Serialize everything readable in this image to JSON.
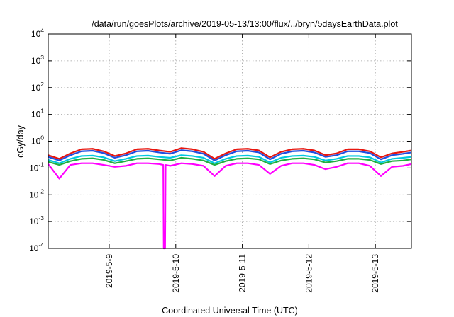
{
  "chart_data": {
    "type": "line",
    "title": "/data/run/goesPlots/archive/2019-05-13/13:00/flux/../bryn/5daysEarthData.plot",
    "xlabel": "Coordinated Universal Time (UTC)",
    "ylabel": "cGy/day",
    "yscale": "log",
    "ylim": [
      0.0001,
      10000
    ],
    "xlim": [
      "2019-05-08 02:00",
      "2019-05-13 13:00"
    ],
    "grid": true,
    "legend": "none",
    "y_ticks": [
      {
        "base": "10",
        "exp": "-4",
        "value": 0.0001
      },
      {
        "base": "10",
        "exp": "-3",
        "value": 0.001
      },
      {
        "base": "10",
        "exp": "-2",
        "value": 0.01
      },
      {
        "base": "10",
        "exp": "-1",
        "value": 0.1
      },
      {
        "base": "10",
        "exp": "0",
        "value": 1
      },
      {
        "base": "10",
        "exp": "1",
        "value": 10
      },
      {
        "base": "10",
        "exp": "2",
        "value": 100
      },
      {
        "base": "10",
        "exp": "3",
        "value": 1000
      },
      {
        "base": "10",
        "exp": "4",
        "value": 10000
      }
    ],
    "x_ticks": [
      {
        "label": "2019-5-9",
        "value": "2019-05-09 00:00"
      },
      {
        "label": "2019-5-10",
        "value": "2019-05-10 00:00"
      },
      {
        "label": "2019-5-11",
        "value": "2019-05-11 00:00"
      },
      {
        "label": "2019-5-12",
        "value": "2019-05-12 00:00"
      },
      {
        "label": "2019-5-13",
        "value": "2019-05-13 00:00"
      }
    ],
    "series": [
      {
        "color": "#e8170f",
        "x": [
          "2019-05-08 02:00",
          "2019-05-08 06:00",
          "2019-05-08 10:00",
          "2019-05-08 14:00",
          "2019-05-08 18:00",
          "2019-05-08 22:00",
          "2019-05-09 02:00",
          "2019-05-09 06:00",
          "2019-05-09 10:00",
          "2019-05-09 14:00",
          "2019-05-09 18:00",
          "2019-05-09 22:00",
          "2019-05-10 02:00",
          "2019-05-10 06:00",
          "2019-05-10 10:00",
          "2019-05-10 14:00",
          "2019-05-10 18:00",
          "2019-05-10 22:00",
          "2019-05-11 02:00",
          "2019-05-11 06:00",
          "2019-05-11 10:00",
          "2019-05-11 14:00",
          "2019-05-11 18:00",
          "2019-05-11 22:00",
          "2019-05-12 02:00",
          "2019-05-12 06:00",
          "2019-05-12 10:00",
          "2019-05-12 14:00",
          "2019-05-12 18:00",
          "2019-05-12 22:00",
          "2019-05-13 02:00",
          "2019-05-13 06:00",
          "2019-05-13 10:00",
          "2019-05-13 13:00"
        ],
        "y": [
          0.3,
          0.22,
          0.35,
          0.5,
          0.52,
          0.42,
          0.28,
          0.35,
          0.5,
          0.52,
          0.45,
          0.4,
          0.55,
          0.5,
          0.4,
          0.22,
          0.35,
          0.5,
          0.52,
          0.45,
          0.25,
          0.4,
          0.5,
          0.52,
          0.45,
          0.3,
          0.35,
          0.5,
          0.5,
          0.42,
          0.25,
          0.35,
          0.4,
          0.45
        ]
      },
      {
        "color": "#1f4fe0",
        "x": [
          "2019-05-08 02:00",
          "2019-05-08 06:00",
          "2019-05-08 10:00",
          "2019-05-08 14:00",
          "2019-05-08 18:00",
          "2019-05-08 22:00",
          "2019-05-09 02:00",
          "2019-05-09 06:00",
          "2019-05-09 10:00",
          "2019-05-09 14:00",
          "2019-05-09 18:00",
          "2019-05-09 22:00",
          "2019-05-10 02:00",
          "2019-05-10 06:00",
          "2019-05-10 10:00",
          "2019-05-10 14:00",
          "2019-05-10 18:00",
          "2019-05-10 22:00",
          "2019-05-11 02:00",
          "2019-05-11 06:00",
          "2019-05-11 10:00",
          "2019-05-11 14:00",
          "2019-05-11 18:00",
          "2019-05-11 22:00",
          "2019-05-12 02:00",
          "2019-05-12 06:00",
          "2019-05-12 10:00",
          "2019-05-12 14:00",
          "2019-05-12 18:00",
          "2019-05-12 22:00",
          "2019-05-13 02:00",
          "2019-05-13 06:00",
          "2019-05-13 10:00",
          "2019-05-13 13:00"
        ],
        "y": [
          0.26,
          0.19,
          0.3,
          0.42,
          0.44,
          0.36,
          0.24,
          0.3,
          0.42,
          0.44,
          0.38,
          0.34,
          0.46,
          0.42,
          0.34,
          0.19,
          0.3,
          0.42,
          0.44,
          0.38,
          0.21,
          0.34,
          0.42,
          0.44,
          0.38,
          0.26,
          0.3,
          0.42,
          0.42,
          0.36,
          0.21,
          0.3,
          0.34,
          0.38
        ]
      },
      {
        "color": "#00c8e0",
        "x": [
          "2019-05-08 02:00",
          "2019-05-08 06:00",
          "2019-05-08 10:00",
          "2019-05-08 14:00",
          "2019-05-08 18:00",
          "2019-05-08 22:00",
          "2019-05-09 02:00",
          "2019-05-09 06:00",
          "2019-05-09 10:00",
          "2019-05-09 14:00",
          "2019-05-09 18:00",
          "2019-05-09 22:00",
          "2019-05-10 02:00",
          "2019-05-10 06:00",
          "2019-05-10 10:00",
          "2019-05-10 14:00",
          "2019-05-10 18:00",
          "2019-05-10 22:00",
          "2019-05-11 02:00",
          "2019-05-11 06:00",
          "2019-05-11 10:00",
          "2019-05-11 14:00",
          "2019-05-11 18:00",
          "2019-05-11 22:00",
          "2019-05-12 02:00",
          "2019-05-12 06:00",
          "2019-05-12 10:00",
          "2019-05-12 14:00",
          "2019-05-12 18:00",
          "2019-05-12 22:00",
          "2019-05-13 02:00",
          "2019-05-13 06:00",
          "2019-05-13 10:00",
          "2019-05-13 13:00"
        ],
        "y": [
          0.2,
          0.15,
          0.22,
          0.28,
          0.29,
          0.25,
          0.18,
          0.22,
          0.28,
          0.29,
          0.26,
          0.24,
          0.3,
          0.28,
          0.24,
          0.15,
          0.22,
          0.28,
          0.29,
          0.26,
          0.16,
          0.24,
          0.28,
          0.29,
          0.26,
          0.19,
          0.22,
          0.28,
          0.28,
          0.25,
          0.16,
          0.22,
          0.24,
          0.26
        ]
      },
      {
        "color": "#20b040",
        "x": [
          "2019-05-08 02:00",
          "2019-05-08 06:00",
          "2019-05-08 10:00",
          "2019-05-08 14:00",
          "2019-05-08 18:00",
          "2019-05-08 22:00",
          "2019-05-09 02:00",
          "2019-05-09 06:00",
          "2019-05-09 10:00",
          "2019-05-09 14:00",
          "2019-05-09 18:00",
          "2019-05-09 22:00",
          "2019-05-10 02:00",
          "2019-05-10 06:00",
          "2019-05-10 10:00",
          "2019-05-10 14:00",
          "2019-05-10 18:00",
          "2019-05-10 22:00",
          "2019-05-11 02:00",
          "2019-05-11 06:00",
          "2019-05-11 10:00",
          "2019-05-11 14:00",
          "2019-05-11 18:00",
          "2019-05-11 22:00",
          "2019-05-12 02:00",
          "2019-05-12 06:00",
          "2019-05-12 10:00",
          "2019-05-12 14:00",
          "2019-05-12 18:00",
          "2019-05-12 22:00",
          "2019-05-13 02:00",
          "2019-05-13 06:00",
          "2019-05-13 10:00",
          "2019-05-13 13:00"
        ],
        "y": [
          0.17,
          0.13,
          0.18,
          0.22,
          0.23,
          0.2,
          0.15,
          0.18,
          0.22,
          0.23,
          0.21,
          0.19,
          0.24,
          0.22,
          0.19,
          0.13,
          0.18,
          0.22,
          0.23,
          0.21,
          0.14,
          0.19,
          0.22,
          0.23,
          0.21,
          0.16,
          0.18,
          0.22,
          0.22,
          0.2,
          0.14,
          0.18,
          0.19,
          0.21
        ]
      },
      {
        "color": "#ff00ff",
        "x": [
          "2019-05-08 02:00",
          "2019-05-08 06:00",
          "2019-05-08 10:00",
          "2019-05-08 14:00",
          "2019-05-08 18:00",
          "2019-05-08 22:00",
          "2019-05-09 02:00",
          "2019-05-09 06:00",
          "2019-05-09 10:00",
          "2019-05-09 14:00",
          "2019-05-09 18:00",
          "2019-05-09 19:30",
          "2019-05-09 19:40",
          "2019-05-09 20:10",
          "2019-05-09 20:20",
          "2019-05-09 22:00",
          "2019-05-10 02:00",
          "2019-05-10 06:00",
          "2019-05-10 10:00",
          "2019-05-10 14:00",
          "2019-05-10 18:00",
          "2019-05-10 22:00",
          "2019-05-11 02:00",
          "2019-05-11 06:00",
          "2019-05-11 10:00",
          "2019-05-11 14:00",
          "2019-05-11 18:00",
          "2019-05-11 22:00",
          "2019-05-12 02:00",
          "2019-05-12 06:00",
          "2019-05-12 10:00",
          "2019-05-12 14:00",
          "2019-05-12 18:00",
          "2019-05-12 22:00",
          "2019-05-13 02:00",
          "2019-05-13 06:00",
          "2019-05-13 10:00",
          "2019-05-13 13:00"
        ],
        "y": [
          0.14,
          0.04,
          0.13,
          0.15,
          0.15,
          0.13,
          0.11,
          0.12,
          0.15,
          0.15,
          0.14,
          0.13,
          0.0001,
          0.0001,
          0.13,
          0.12,
          0.15,
          0.14,
          0.12,
          0.05,
          0.12,
          0.15,
          0.15,
          0.13,
          0.06,
          0.12,
          0.15,
          0.15,
          0.13,
          0.09,
          0.11,
          0.15,
          0.15,
          0.12,
          0.05,
          0.11,
          0.12,
          0.14
        ]
      }
    ]
  }
}
